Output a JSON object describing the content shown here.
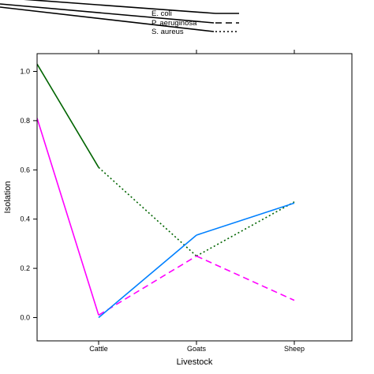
{
  "chart_data": {
    "type": "line",
    "title": "",
    "xlabel": "Livestock",
    "ylabel": "Isolation",
    "categories": [
      "Cattle",
      "Goats",
      "Sheep"
    ],
    "y_ticks": [
      "0.0",
      "0.2",
      "0.4",
      "0.6",
      "0.8",
      "1.0"
    ],
    "y_tick_values": [
      0.0,
      0.2,
      0.4,
      0.6,
      0.8,
      1.0
    ],
    "ylim": [
      -0.05,
      1.05
    ],
    "grid": false,
    "legend_placement": "top",
    "legend": [
      {
        "label": "E. coli",
        "linestyle": "solid"
      },
      {
        "label": "P. aeruginosa",
        "linestyle": "dashed"
      },
      {
        "label": "S. aureus",
        "linestyle": "dotted"
      }
    ],
    "series": [
      {
        "color": "#006400",
        "points": [
          {
            "x": "left-edge",
            "y": 1.03,
            "style": "solid"
          },
          {
            "x": "Cattle",
            "y": 0.61,
            "style": "dotted"
          },
          {
            "x": "Goats",
            "y": 0.25,
            "style": "dotted"
          },
          {
            "x": "Sheep",
            "y": 0.47,
            "style": null
          }
        ]
      },
      {
        "color": "#ff00ff",
        "points": [
          {
            "x": "left-edge",
            "y": 0.81,
            "style": "solid"
          },
          {
            "x": "Cattle",
            "y": 0.01,
            "style": "dashed"
          },
          {
            "x": "Goats",
            "y": 0.25,
            "style": "dashed"
          },
          {
            "x": "Sheep",
            "y": 0.07,
            "style": null
          }
        ]
      },
      {
        "color": "#0080ff",
        "points": [
          {
            "x": "Cattle",
            "y": 0.0,
            "style": "solid"
          },
          {
            "x": "Goats",
            "y": 0.335,
            "style": "solid"
          },
          {
            "x": "Sheep",
            "y": 0.465,
            "style": null
          }
        ]
      }
    ]
  }
}
